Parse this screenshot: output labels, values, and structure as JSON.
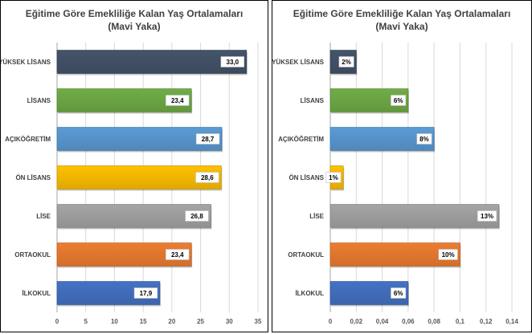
{
  "chart_data": [
    {
      "type": "bar",
      "orientation": "horizontal",
      "title": "Eğitime Göre Emekliliğe Kalan Yaş Ortalamaları",
      "subtitle": "(Mavi Yaka)",
      "categories": [
        "YÜKSEK LİSANS",
        "LİSANS",
        "AÇIKÖĞRETİM",
        "ÖN LİSANS",
        "LİSE",
        "ORTAOKUL",
        "İLKOKUL"
      ],
      "values": [
        33.0,
        23.4,
        28.7,
        28.6,
        26.8,
        23.4,
        17.9
      ],
      "data_labels": [
        "33,0",
        "23,4",
        "28,7",
        "28,6",
        "26,8",
        "23,4",
        "17,9"
      ],
      "colors": [
        "#44546A",
        "#70AD47",
        "#5B9BD5",
        "#FFC000",
        "#A5A5A5",
        "#ED7D31",
        "#4472C4"
      ],
      "xlim": [
        0,
        35
      ],
      "ticks": [
        "0",
        "5",
        "10",
        "15",
        "20",
        "25",
        "30",
        "35"
      ],
      "grid": "vertical",
      "legend": "none"
    },
    {
      "type": "bar",
      "orientation": "horizontal",
      "title": "Eğitime Göre Emekliliğe Kalan Yaş Ortalamaları",
      "subtitle": "(Mavi Yaka)",
      "categories": [
        "YÜKSEK LİSANS",
        "LİSANS",
        "AÇIKÖĞRETİM",
        "ÖN LİSANS",
        "LİSE",
        "ORTAOKUL",
        "İLKOKUL"
      ],
      "values": [
        0.02,
        0.06,
        0.08,
        0.01,
        0.13,
        0.1,
        0.06
      ],
      "data_labels": [
        "2%",
        "6%",
        "8%",
        "1%",
        "13%",
        "10%",
        "6%"
      ],
      "colors": [
        "#44546A",
        "#70AD47",
        "#5B9BD5",
        "#FFC000",
        "#A5A5A5",
        "#ED7D31",
        "#4472C4"
      ],
      "xlim": [
        0,
        0.14
      ],
      "ticks": [
        "0",
        "0,02",
        "0,04",
        "0,06",
        "0,08",
        "0,1",
        "0,12",
        "0,14"
      ],
      "grid": "vertical",
      "legend": "none"
    }
  ]
}
